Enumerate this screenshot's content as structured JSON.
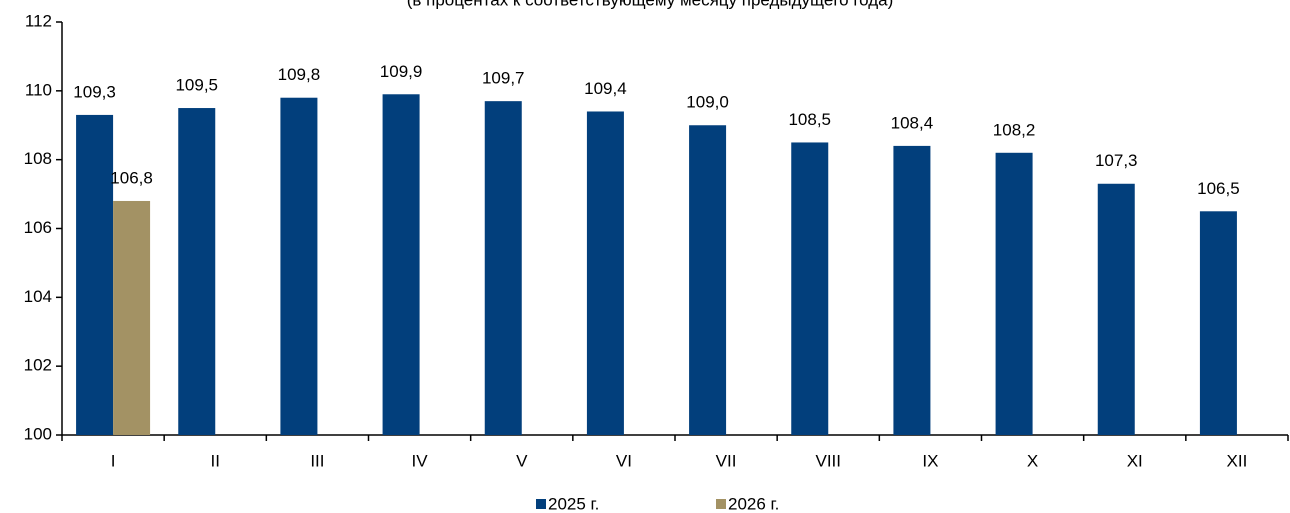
{
  "chart_data": {
    "type": "bar",
    "subtitle": "(в процентах к соответствующему месяцу предыдущего года)",
    "categories": [
      "I",
      "II",
      "III",
      "IV",
      "V",
      "VI",
      "VII",
      "VIII",
      "IX",
      "X",
      "XI",
      "XII"
    ],
    "series": [
      {
        "name": "2025 г.",
        "color": "#023f7c",
        "values": [
          109.3,
          109.5,
          109.8,
          109.9,
          109.7,
          109.4,
          109.0,
          108.5,
          108.4,
          108.2,
          107.3,
          106.5
        ],
        "value_labels": [
          "109,3",
          "109,5",
          "109,8",
          "109,9",
          "109,7",
          "109,4",
          "109,0",
          "108,5",
          "108,4",
          "108,2",
          "107,3",
          "106,5"
        ]
      },
      {
        "name": "2026 г.",
        "color": "#a39264",
        "values": [
          106.8,
          null,
          null,
          null,
          null,
          null,
          null,
          null,
          null,
          null,
          null,
          null
        ],
        "value_labels": [
          "106,8",
          null,
          null,
          null,
          null,
          null,
          null,
          null,
          null,
          null,
          null,
          null
        ]
      }
    ],
    "ylim": [
      100,
      112
    ],
    "yticks": [
      100,
      102,
      104,
      106,
      108,
      110,
      112
    ],
    "grid": false,
    "legend": "bottom"
  }
}
